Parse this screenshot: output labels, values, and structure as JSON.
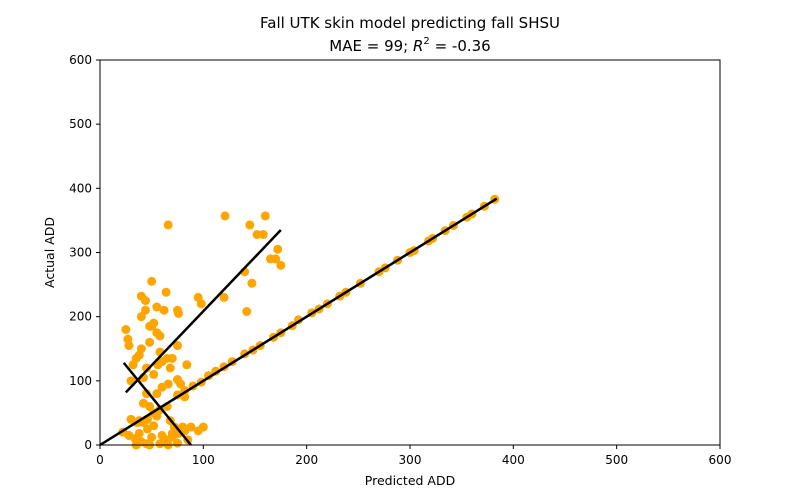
{
  "chart_data": {
    "type": "scatter",
    "title": "Fall UTK skin model predicting fall SHSU",
    "subtitle_prefix": "MAE = 99; ",
    "subtitle_r": "R",
    "subtitle_sup": "2",
    "subtitle_suffix": " = -0.36",
    "xlabel": "Predicted ADD",
    "ylabel": "Actual ADD",
    "xlim": [
      0,
      600
    ],
    "ylim": [
      0,
      600
    ],
    "xticks": [
      0,
      100,
      200,
      300,
      400,
      500,
      600
    ],
    "yticks": [
      0,
      100,
      200,
      300,
      400,
      500,
      600
    ],
    "grid": false,
    "colors": {
      "points": "#FFA500",
      "lines": "#000000"
    },
    "series": [
      {
        "kind": "points",
        "x": [
          22,
          28,
          34,
          40,
          46,
          52,
          58,
          64,
          70,
          76,
          82,
          88,
          30,
          42,
          55,
          68,
          80,
          95,
          100,
          38,
          50,
          62,
          75,
          85,
          45,
          60,
          72,
          35,
          48,
          66,
          25,
          27,
          28,
          30,
          32,
          35,
          38,
          40,
          42,
          45,
          48,
          50,
          52,
          55,
          58,
          60,
          65,
          68,
          70,
          75,
          78,
          82,
          84,
          55,
          62,
          50,
          44,
          40,
          45,
          52,
          60,
          40,
          44,
          48,
          56,
          58,
          66,
          75,
          42,
          48,
          55,
          65,
          58,
          52,
          46,
          38,
          36,
          70,
          62,
          75,
          82,
          90,
          98,
          105,
          112,
          120,
          128,
          140,
          148,
          155,
          168,
          175,
          186,
          192,
          205,
          212,
          220,
          232,
          238,
          252,
          270,
          276,
          288,
          300,
          304,
          318,
          322,
          334,
          342,
          355,
          360,
          372,
          382,
          66,
          121,
          145,
          160,
          152,
          158,
          172,
          175,
          165,
          170,
          140,
          142,
          147,
          120,
          98,
          95,
          76,
          75,
          64
        ],
        "y": [
          20,
          15,
          10,
          5,
          25,
          30,
          2,
          8,
          12,
          18,
          22,
          28,
          40,
          35,
          45,
          38,
          28,
          22,
          28,
          18,
          12,
          5,
          3,
          8,
          2,
          15,
          28,
          0,
          0,
          0,
          180,
          165,
          155,
          100,
          125,
          135,
          140,
          150,
          105,
          120,
          160,
          185,
          190,
          175,
          170,
          130,
          135,
          120,
          135,
          102,
          95,
          75,
          125,
          215,
          210,
          255,
          225,
          232,
          80,
          110,
          90,
          200,
          210,
          185,
          125,
          145,
          95,
          155,
          65,
          60,
          80,
          60,
          55,
          50,
          40,
          38,
          35,
          18,
          10,
          78,
          85,
          92,
          98,
          108,
          115,
          122,
          130,
          142,
          148,
          155,
          168,
          175,
          186,
          195,
          206,
          212,
          220,
          232,
          238,
          252,
          270,
          276,
          288,
          300,
          303,
          318,
          322,
          334,
          342,
          355,
          360,
          372,
          383,
          343,
          357,
          343,
          357,
          328,
          328,
          305,
          280,
          290,
          290,
          270,
          208,
          252,
          230,
          220,
          230,
          205,
          210,
          238
        ]
      },
      {
        "kind": "fit-lines",
        "lines": [
          {
            "x": [
              0,
              384
            ],
            "y": [
              0,
              384
            ]
          },
          {
            "x": [
              25,
              175
            ],
            "y": [
              82,
              335
            ]
          },
          {
            "x": [
              23,
              88
            ],
            "y": [
              128,
              0
            ]
          }
        ]
      }
    ]
  }
}
